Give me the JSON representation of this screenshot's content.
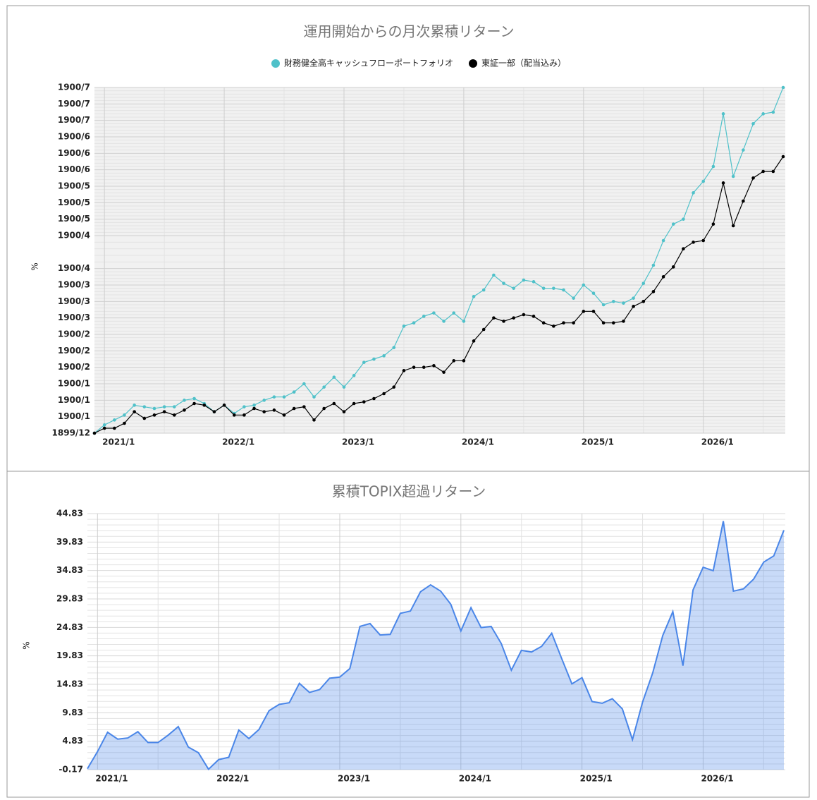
{
  "chart_data": [
    {
      "type": "line",
      "title": "運用開始からの月次累積リターン",
      "ylabel": "%",
      "legend": "top",
      "grid": true,
      "categories": [
        null,
        "2021/1",
        null,
        null,
        null,
        null,
        null,
        null,
        null,
        null,
        null,
        null,
        null,
        "2022/1",
        null,
        null,
        null,
        null,
        null,
        null,
        null,
        null,
        null,
        null,
        null,
        "2023/1",
        null,
        null,
        null,
        null,
        null,
        null,
        null,
        null,
        null,
        null,
        null,
        "2024/1",
        null,
        null,
        null,
        null,
        null,
        null,
        null,
        null,
        null,
        null,
        null,
        "2025/1",
        null,
        null,
        null,
        null,
        null,
        null,
        null,
        null,
        null,
        null,
        null,
        "2026/1",
        null,
        null,
        null,
        null,
        null,
        null,
        null,
        null
      ],
      "ylim": [
        0,
        210
      ],
      "yticks": [
        {
          "value": 0,
          "label": "1899/12"
        },
        {
          "value": 10,
          "label": "1900/1"
        },
        {
          "value": 20,
          "label": "1900/1"
        },
        {
          "value": 30,
          "label": "1900/1"
        },
        {
          "value": 40,
          "label": "1900/2"
        },
        {
          "value": 50,
          "label": "1900/2"
        },
        {
          "value": 60,
          "label": "1900/2"
        },
        {
          "value": 70,
          "label": "1900/3"
        },
        {
          "value": 80,
          "label": "1900/3"
        },
        {
          "value": 90,
          "label": "1900/3"
        },
        {
          "value": 100,
          "label": "1900/4"
        },
        {
          "value": 120,
          "label": "1900/4"
        },
        {
          "value": 130,
          "label": "1900/5"
        },
        {
          "value": 140,
          "label": "1900/5"
        },
        {
          "value": 150,
          "label": "1900/5"
        },
        {
          "value": 160,
          "label": "1900/6"
        },
        {
          "value": 170,
          "label": "1900/6"
        },
        {
          "value": 180,
          "label": "1900/6"
        },
        {
          "value": 190,
          "label": "1900/7"
        },
        {
          "value": 200,
          "label": "1900/7"
        },
        {
          "value": 210,
          "label": "1900/7"
        }
      ],
      "series": [
        {
          "name": "財務健全高キャッシュフローポートフォリオ",
          "color": "#4fc1c9",
          "values": [
            0,
            5,
            8,
            11,
            17,
            16,
            15,
            16,
            16,
            20,
            21,
            18,
            13,
            17,
            12,
            16,
            17,
            20,
            22,
            22,
            25,
            30,
            22,
            28,
            34,
            28,
            35,
            43,
            45,
            47,
            52,
            65,
            67,
            71,
            73,
            68,
            73,
            68,
            83,
            87,
            96,
            91,
            88,
            93,
            92,
            88,
            88,
            87,
            82,
            90,
            85,
            78,
            80,
            79,
            82,
            91,
            102,
            117,
            127,
            130,
            146,
            153,
            162,
            194,
            156,
            172,
            188,
            194,
            195,
            210
          ]
        },
        {
          "name": "東証一部（配当込み）",
          "color": "#000000",
          "values": [
            0,
            3,
            3,
            6,
            13,
            9,
            11,
            13,
            11,
            14,
            18,
            17,
            13,
            17,
            11,
            11,
            15,
            13,
            14,
            11,
            15,
            16,
            8,
            15,
            18,
            13,
            18,
            19,
            21,
            24,
            28,
            38,
            40,
            40,
            41,
            37,
            44,
            44,
            56,
            63,
            70,
            68,
            70,
            72,
            71,
            67,
            65,
            67,
            67,
            74,
            74,
            67,
            67,
            68,
            77,
            80,
            86,
            95,
            101,
            112,
            116,
            117,
            127,
            152,
            126,
            141,
            155,
            159,
            159,
            168
          ]
        }
      ]
    },
    {
      "type": "area",
      "title": "累積TOPIX超過リターン",
      "ylabel": "%",
      "grid": true,
      "categories": [
        null,
        "2021/1",
        null,
        null,
        null,
        null,
        null,
        null,
        null,
        null,
        null,
        null,
        null,
        "2022/1",
        null,
        null,
        null,
        null,
        null,
        null,
        null,
        null,
        null,
        null,
        null,
        "2023/1",
        null,
        null,
        null,
        null,
        null,
        null,
        null,
        null,
        null,
        null,
        null,
        "2024/1",
        null,
        null,
        null,
        null,
        null,
        null,
        null,
        null,
        null,
        null,
        null,
        "2025/1",
        null,
        null,
        null,
        null,
        null,
        null,
        null,
        null,
        null,
        null,
        null,
        "2026/1",
        null,
        null,
        null,
        null,
        null,
        null,
        null,
        null
      ],
      "ylim": [
        -0.17,
        44.83
      ],
      "yticks": [
        -0.17,
        4.83,
        9.83,
        14.83,
        19.83,
        24.83,
        29.83,
        34.83,
        39.83,
        44.83
      ],
      "series": [
        {
          "color": "#4a86e8",
          "values": [
            0,
            3,
            6.4,
            5.2,
            5.4,
            6.5,
            4.6,
            4.6,
            5.9,
            7.4,
            3.8,
            2.8,
            -0.1,
            1.6,
            2,
            6.8,
            5.3,
            6.9,
            10.2,
            11.3,
            11.6,
            15,
            13.4,
            13.9,
            15.9,
            16.1,
            17.6,
            25,
            25.5,
            23.5,
            23.6,
            27.3,
            27.7,
            31.1,
            32.3,
            31.2,
            28.9,
            24.2,
            28.3,
            24.8,
            25,
            22,
            17.3,
            20.8,
            20.5,
            21.5,
            23.8,
            19.3,
            14.9,
            16,
            11.8,
            11.5,
            12.3,
            10.5,
            5.1,
            11.7,
            16.8,
            23.4,
            27.6,
            18.1,
            31.4,
            35.4,
            34.8,
            43.5,
            31.2,
            31.6,
            33.3,
            36.3,
            37.4,
            41.9
          ]
        }
      ]
    }
  ]
}
